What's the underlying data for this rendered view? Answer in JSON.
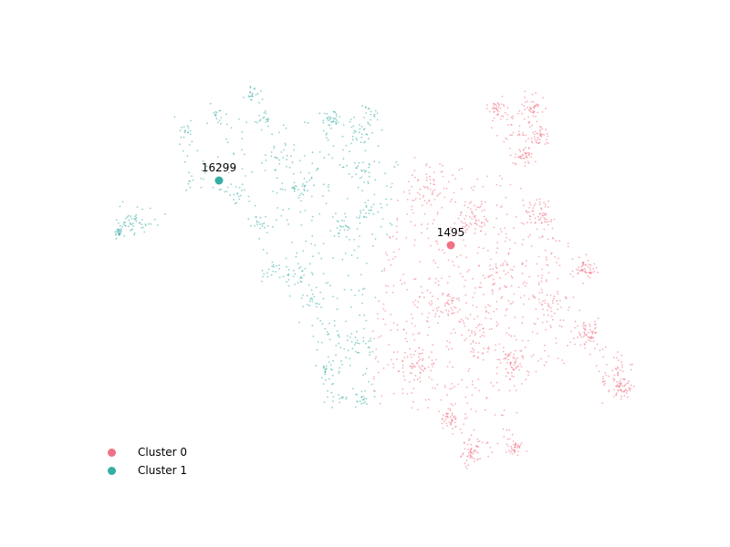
{
  "chart_data": {
    "type": "scatter",
    "title": "",
    "xlabel": "",
    "ylabel": "",
    "axes_visible": false,
    "grid": false,
    "legend_position": "bottom-left",
    "series": [
      {
        "name": "Cluster 0",
        "color": "#f07183"
      },
      {
        "name": "Cluster 1",
        "color": "#36ada4"
      }
    ],
    "centroids": [
      {
        "cluster": 0,
        "label": "1495",
        "color": "#f07183"
      },
      {
        "cluster": 1,
        "label": "16299",
        "color": "#36ada4"
      }
    ]
  },
  "legend": {
    "items": [
      {
        "label": "Cluster 0",
        "color": "#f07183"
      },
      {
        "label": "Cluster 1",
        "color": "#36ada4"
      }
    ]
  }
}
